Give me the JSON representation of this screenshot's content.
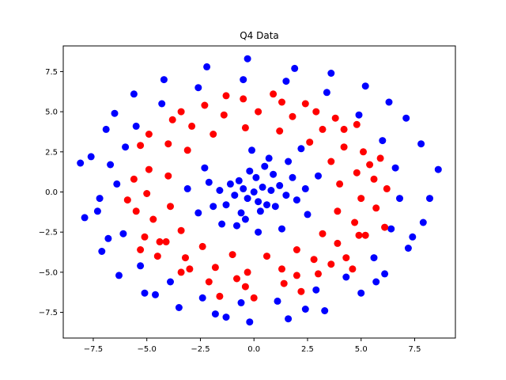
{
  "chart_data": {
    "type": "scatter",
    "title": "Q4 Data",
    "xlabel": "",
    "ylabel": "",
    "xlim": [
      -8.9,
      9.4
    ],
    "ylim": [
      -9.1,
      9.1
    ],
    "xticks": [
      -7.5,
      -5.0,
      -2.5,
      0.0,
      2.5,
      5.0,
      7.5
    ],
    "xtick_labels": [
      "−7.5",
      "−5.0",
      "−2.5",
      "0.0",
      "2.5",
      "5.0",
      "7.5"
    ],
    "yticks": [
      -7.5,
      -5.0,
      -2.5,
      0.0,
      2.5,
      5.0,
      7.5
    ],
    "ytick_labels": [
      "−7.5",
      "−5.0",
      "−2.5",
      "0.0",
      "2.5",
      "5.0",
      "7.5"
    ],
    "grid": false,
    "legend": "none",
    "series": [
      {
        "color": "#0000ff",
        "points": [
          [
            0.0,
            0.0
          ],
          [
            0.4,
            0.3
          ],
          [
            -0.5,
            0.2
          ],
          [
            0.2,
            -0.6
          ],
          [
            -0.3,
            -0.4
          ],
          [
            0.8,
            0.1
          ],
          [
            -0.9,
            -0.2
          ],
          [
            0.1,
            0.9
          ],
          [
            0.6,
            -0.8
          ],
          [
            -0.7,
            0.7
          ],
          [
            1.2,
            0.4
          ],
          [
            -1.1,
            0.5
          ],
          [
            0.3,
            -1.2
          ],
          [
            -0.2,
            1.3
          ],
          [
            1.0,
            -0.9
          ],
          [
            -1.3,
            -0.8
          ],
          [
            0.9,
            1.1
          ],
          [
            -0.6,
            -1.3
          ],
          [
            1.5,
            -0.2
          ],
          [
            -1.6,
            0.1
          ],
          [
            0.5,
            1.6
          ],
          [
            -0.4,
            -1.7
          ],
          [
            1.8,
            0.9
          ],
          [
            -1.9,
            -0.9
          ],
          [
            2.0,
            -0.5
          ],
          [
            -2.1,
            0.6
          ],
          [
            0.7,
            2.1
          ],
          [
            -0.8,
            -2.1
          ],
          [
            2.4,
            0.2
          ],
          [
            -2.3,
            1.5
          ],
          [
            1.6,
            1.9
          ],
          [
            -1.5,
            -2.0
          ],
          [
            2.5,
            -1.4
          ],
          [
            -2.6,
            -1.3
          ],
          [
            0.2,
            -2.5
          ],
          [
            -0.1,
            2.6
          ],
          [
            1.3,
            -2.3
          ],
          [
            3.0,
            1.0
          ],
          [
            -3.1,
            0.2
          ],
          [
            2.2,
            2.7
          ],
          [
            -6.9,
            3.9
          ],
          [
            -7.6,
            2.2
          ],
          [
            -8.1,
            1.8
          ],
          [
            -7.3,
            -1.2
          ],
          [
            -6.5,
            4.9
          ],
          [
            -5.6,
            6.1
          ],
          [
            -4.2,
            7.0
          ],
          [
            -2.2,
            7.8
          ],
          [
            -0.3,
            8.3
          ],
          [
            1.9,
            7.7
          ],
          [
            3.6,
            7.4
          ],
          [
            5.2,
            6.6
          ],
          [
            6.3,
            5.6
          ],
          [
            7.1,
            4.6
          ],
          [
            7.8,
            3.0
          ],
          [
            8.6,
            1.4
          ],
          [
            8.2,
            -0.4
          ],
          [
            7.9,
            -1.9
          ],
          [
            7.2,
            -3.5
          ],
          [
            6.1,
            -5.1
          ],
          [
            5.0,
            -6.3
          ],
          [
            3.3,
            -7.4
          ],
          [
            1.6,
            -7.9
          ],
          [
            -0.2,
            -8.1
          ],
          [
            -1.8,
            -7.6
          ],
          [
            -3.5,
            -7.2
          ],
          [
            -5.1,
            -6.3
          ],
          [
            -6.3,
            -5.2
          ],
          [
            -7.1,
            -3.7
          ],
          [
            -7.9,
            -1.6
          ],
          [
            -6.0,
            2.8
          ],
          [
            -6.4,
            0.5
          ],
          [
            -6.1,
            -2.6
          ],
          [
            -5.3,
            -4.6
          ],
          [
            -3.9,
            -5.6
          ],
          [
            -2.4,
            -6.6
          ],
          [
            -0.6,
            -6.9
          ],
          [
            1.1,
            -6.8
          ],
          [
            2.9,
            -6.1
          ],
          [
            4.3,
            -5.3
          ],
          [
            5.6,
            -4.1
          ],
          [
            6.4,
            -2.3
          ],
          [
            6.8,
            -0.4
          ],
          [
            6.6,
            1.5
          ],
          [
            6.0,
            3.2
          ],
          [
            4.9,
            4.8
          ],
          [
            3.4,
            6.2
          ],
          [
            1.5,
            6.9
          ],
          [
            -0.5,
            7.0
          ],
          [
            -2.6,
            6.5
          ],
          [
            -4.3,
            5.5
          ],
          [
            -5.5,
            4.1
          ],
          [
            -6.7,
            1.7
          ],
          [
            -7.2,
            -0.4
          ],
          [
            -6.8,
            -2.9
          ],
          [
            -4.6,
            -6.4
          ],
          [
            -1.3,
            -7.8
          ],
          [
            2.4,
            -7.3
          ],
          [
            5.7,
            -5.6
          ],
          [
            7.4,
            -2.8
          ]
        ]
      },
      {
        "color": "#ff0000",
        "points": [
          [
            -4.9,
            1.4
          ],
          [
            -5.0,
            -0.1
          ],
          [
            -4.7,
            -1.7
          ],
          [
            -4.1,
            -3.1
          ],
          [
            -3.2,
            -4.1
          ],
          [
            -1.8,
            -4.7
          ],
          [
            -0.3,
            -5.0
          ],
          [
            1.3,
            -4.8
          ],
          [
            2.8,
            -4.2
          ],
          [
            3.9,
            -3.2
          ],
          [
            4.7,
            -1.9
          ],
          [
            5.0,
            -0.4
          ],
          [
            4.8,
            1.2
          ],
          [
            4.2,
            2.8
          ],
          [
            3.2,
            3.9
          ],
          [
            1.8,
            4.7
          ],
          [
            0.2,
            5.0
          ],
          [
            -1.4,
            4.8
          ],
          [
            -2.9,
            4.1
          ],
          [
            -4.0,
            3.0
          ],
          [
            -5.6,
            0.8
          ],
          [
            -5.5,
            -1.2
          ],
          [
            -5.1,
            -2.8
          ],
          [
            -4.5,
            -4.0
          ],
          [
            -3.4,
            -5.0
          ],
          [
            -2.1,
            -5.6
          ],
          [
            -0.4,
            -5.9
          ],
          [
            1.4,
            -5.7
          ],
          [
            3.0,
            -5.1
          ],
          [
            4.3,
            -4.1
          ],
          [
            5.2,
            -2.7
          ],
          [
            5.7,
            -1.0
          ],
          [
            5.6,
            0.8
          ],
          [
            5.1,
            2.5
          ],
          [
            4.2,
            3.9
          ],
          [
            2.9,
            5.0
          ],
          [
            1.3,
            5.6
          ],
          [
            -0.5,
            5.8
          ],
          [
            -2.3,
            5.4
          ],
          [
            -3.8,
            4.5
          ],
          [
            -4.0,
            1.0
          ],
          [
            -3.9,
            -0.9
          ],
          [
            -3.4,
            -2.4
          ],
          [
            -2.4,
            -3.4
          ],
          [
            -1.0,
            -3.9
          ],
          [
            0.6,
            -4.0
          ],
          [
            2.0,
            -3.6
          ],
          [
            3.2,
            -2.6
          ],
          [
            3.9,
            -1.2
          ],
          [
            4.0,
            0.5
          ],
          [
            3.6,
            1.9
          ],
          [
            2.6,
            3.1
          ],
          [
            1.2,
            3.8
          ],
          [
            -0.4,
            4.0
          ],
          [
            -1.9,
            3.6
          ],
          [
            -3.1,
            2.6
          ],
          [
            -4.9,
            3.6
          ],
          [
            -4.4,
            -3.1
          ],
          [
            -1.6,
            -6.5
          ],
          [
            0.0,
            -6.6
          ],
          [
            2.2,
            -6.2
          ],
          [
            4.6,
            -4.8
          ],
          [
            6.1,
            -2.2
          ],
          [
            6.2,
            0.2
          ],
          [
            5.9,
            2.1
          ],
          [
            4.8,
            4.2
          ],
          [
            2.4,
            5.5
          ],
          [
            0.9,
            6.1
          ],
          [
            -1.3,
            6.0
          ],
          [
            -3.4,
            5.0
          ],
          [
            -5.3,
            2.9
          ],
          [
            -5.9,
            -0.5
          ],
          [
            -5.3,
            -3.6
          ],
          [
            -3.0,
            -4.8
          ],
          [
            -0.8,
            -5.4
          ],
          [
            2.0,
            -5.2
          ],
          [
            3.6,
            -4.5
          ],
          [
            4.9,
            -2.7
          ],
          [
            5.4,
            1.7
          ],
          [
            3.8,
            4.6
          ]
        ]
      }
    ]
  }
}
